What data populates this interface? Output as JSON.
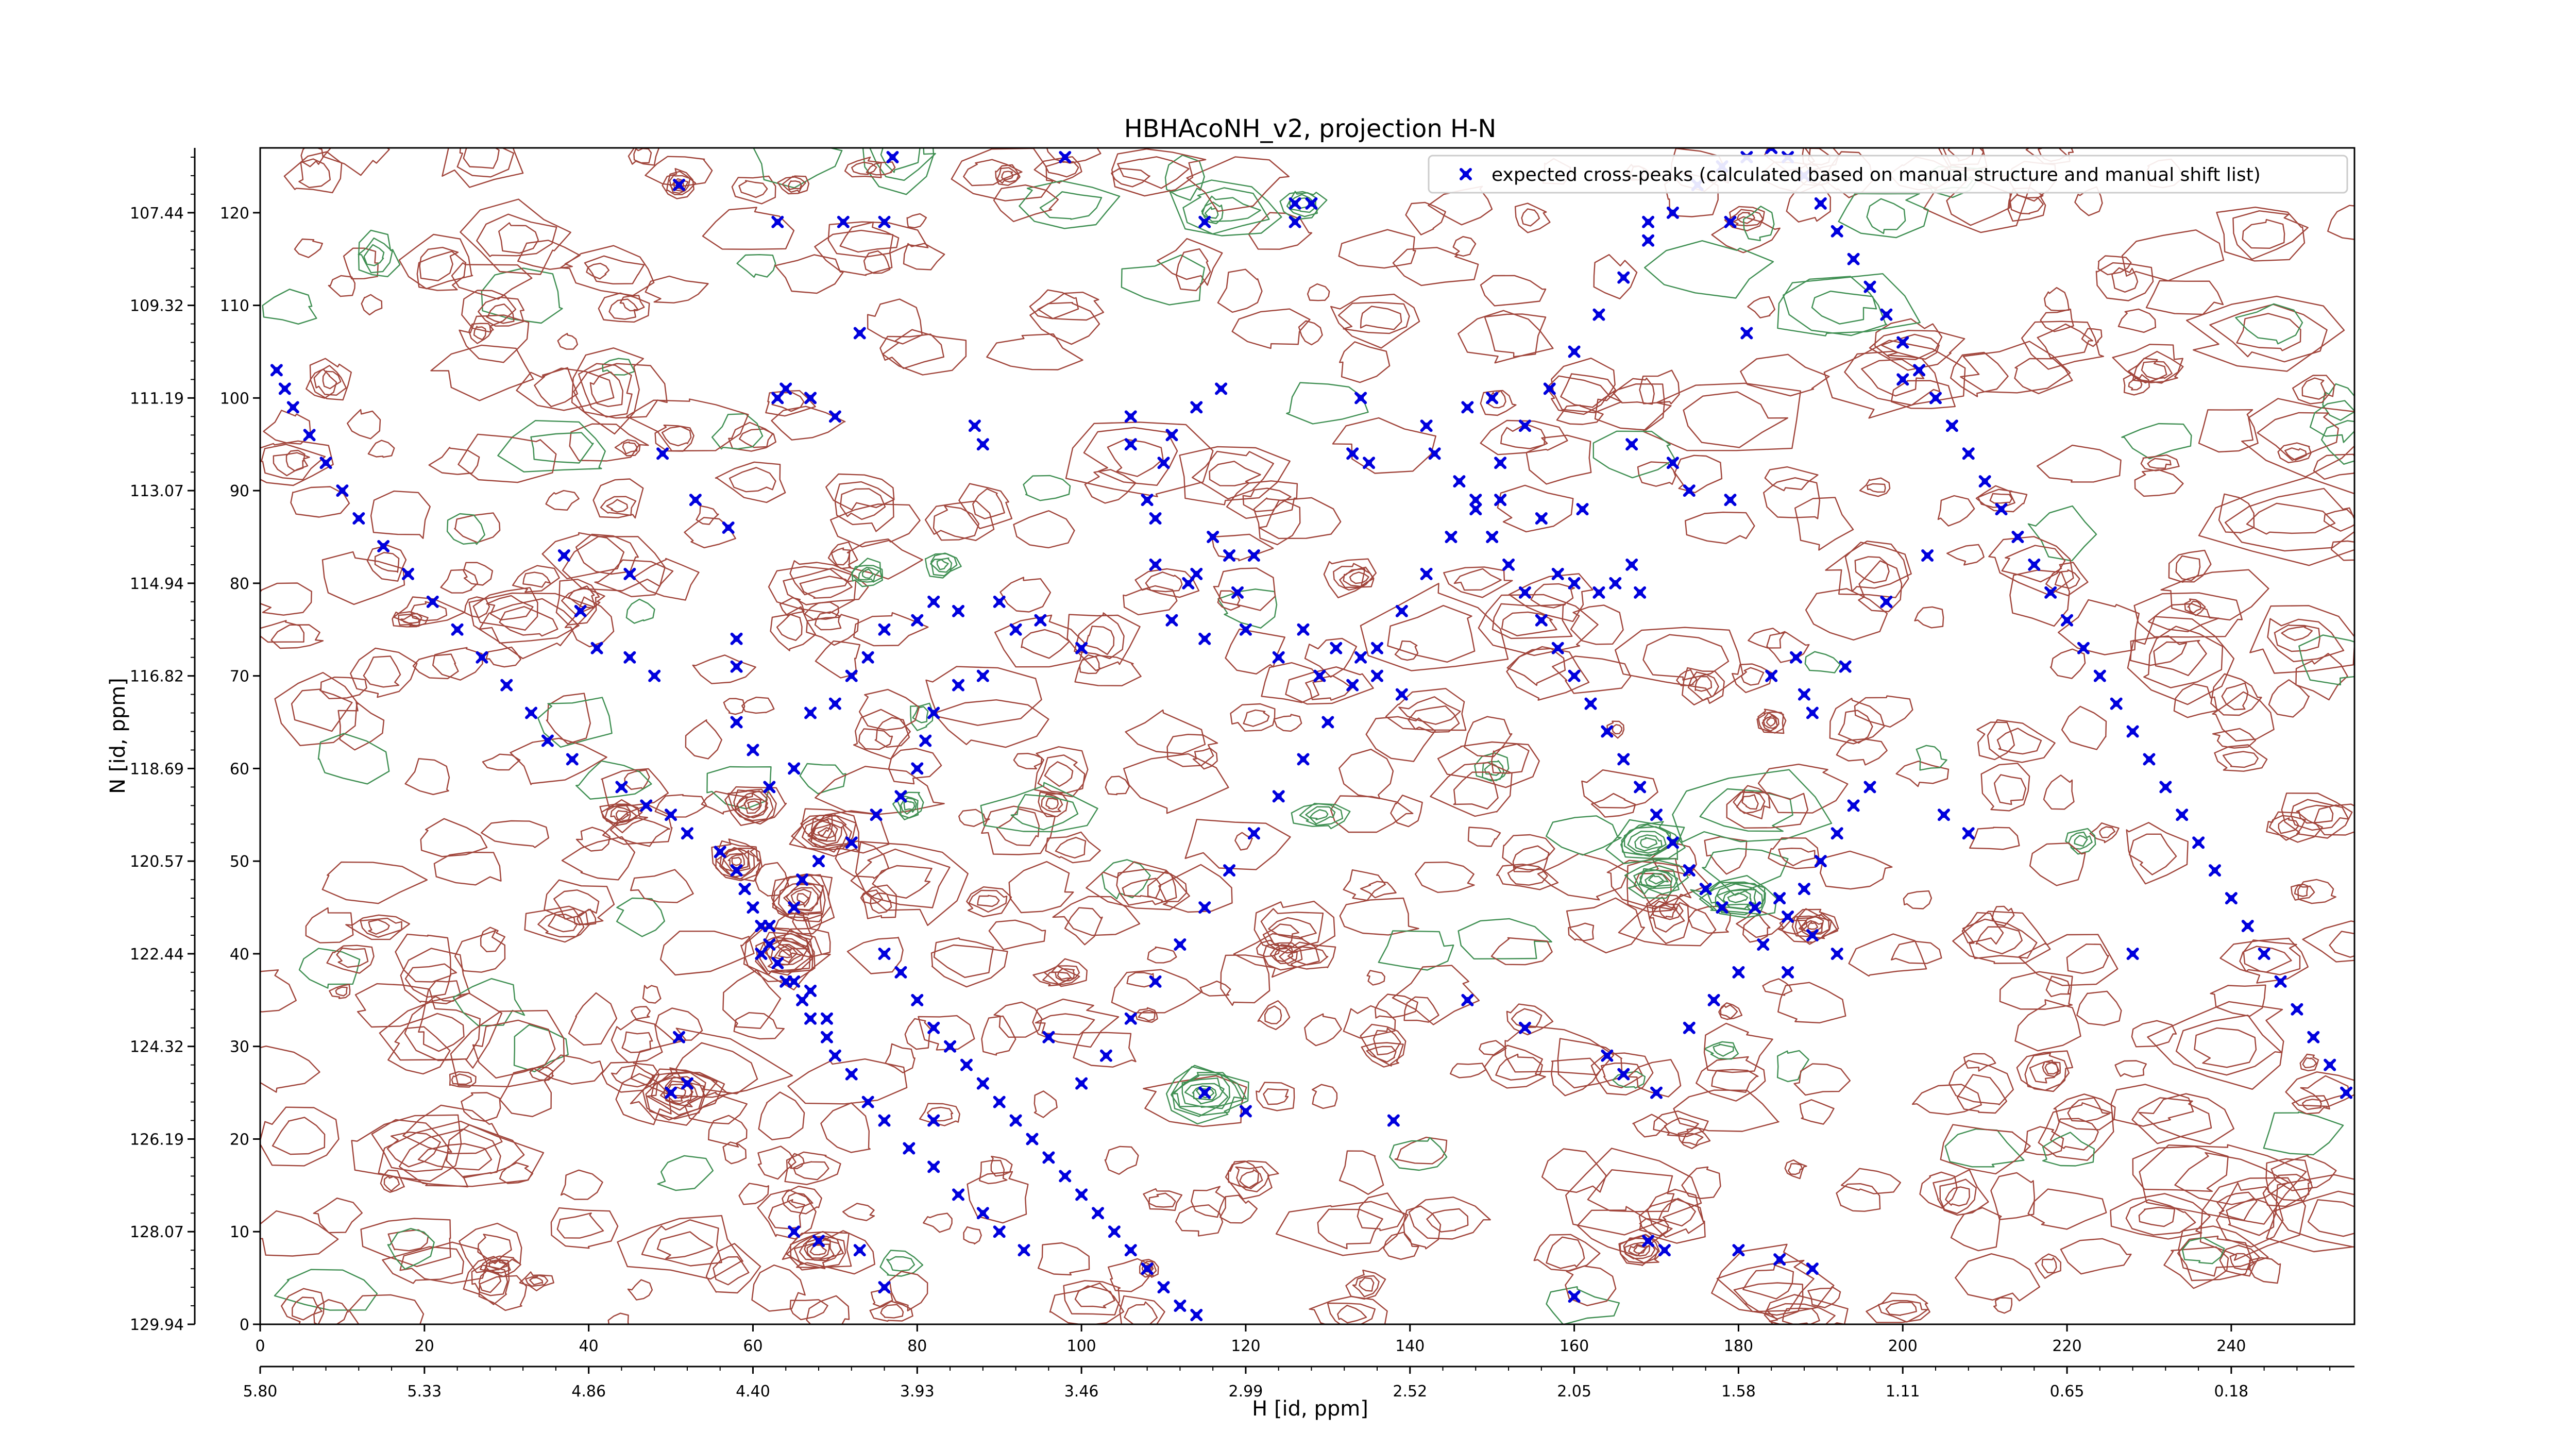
{
  "chart_data": {
    "type": "scatter",
    "title": "HBHAcoNH_v2, projection H-N",
    "xlabel": "H [id, ppm]",
    "ylabel": "N [id, ppm]",
    "x_index_range": [
      0,
      255
    ],
    "y_index_range": [
      0,
      127
    ],
    "x_index_ticks": [
      "0",
      "20",
      "40",
      "60",
      "80",
      "100",
      "120",
      "140",
      "160",
      "180",
      "200",
      "220",
      "240"
    ],
    "x_ppm_ticks": [
      "5.80",
      "5.33",
      "4.86",
      "4.40",
      "3.93",
      "3.46",
      "2.99",
      "2.52",
      "2.05",
      "1.58",
      "1.11",
      "0.65",
      "0.18"
    ],
    "y_index_ticks": [
      "0",
      "10",
      "20",
      "30",
      "40",
      "50",
      "60",
      "70",
      "80",
      "90",
      "100",
      "110",
      "120"
    ],
    "y_ppm_ticks": [
      "129.94",
      "128.07",
      "126.19",
      "124.32",
      "122.44",
      "120.57",
      "118.69",
      "116.82",
      "114.94",
      "113.07",
      "111.19",
      "109.32",
      "107.44"
    ],
    "legend": {
      "position": "top-right",
      "label": "expected cross-peaks (calculated based on manual structure and manual shift list)"
    },
    "colors": {
      "positive_contour": "#a0443a",
      "negative_contour": "#3f8f52",
      "marker": "#0000dd"
    },
    "series": [
      {
        "name": "expected cross-peaks (calculated based on manual structure and manual shift list)",
        "marker": "x",
        "points": [
          [
            51,
            123
          ],
          [
            77,
            126
          ],
          [
            98,
            126
          ],
          [
            63,
            119
          ],
          [
            71,
            119
          ],
          [
            76,
            119
          ],
          [
            115,
            119
          ],
          [
            126,
            119
          ],
          [
            169,
            119
          ],
          [
            179,
            119
          ],
          [
            126,
            121
          ],
          [
            128,
            121
          ],
          [
            181,
            107
          ],
          [
            134,
            100
          ],
          [
            63,
            100
          ],
          [
            70,
            98
          ],
          [
            87,
            97
          ],
          [
            88,
            95
          ],
          [
            106,
            98
          ],
          [
            114,
            99
          ],
          [
            111,
            96
          ],
          [
            110,
            93
          ],
          [
            106,
            95
          ],
          [
            117,
            101
          ],
          [
            142,
            97
          ],
          [
            143,
            94
          ],
          [
            133,
            94
          ],
          [
            135,
            93
          ],
          [
            147,
            99
          ],
          [
            150,
            100
          ],
          [
            49,
            94
          ],
          [
            53,
            89
          ],
          [
            57,
            86
          ],
          [
            67,
            100
          ],
          [
            64,
            101
          ],
          [
            73,
            107
          ],
          [
            200,
            102
          ],
          [
            167,
            95
          ],
          [
            174,
            90
          ],
          [
            179,
            89
          ],
          [
            172,
            93
          ],
          [
            151,
            89
          ],
          [
            161,
            88
          ],
          [
            156,
            87
          ],
          [
            160,
            80
          ],
          [
            158,
            81
          ],
          [
            165,
            80
          ],
          [
            168,
            79
          ],
          [
            163,
            79
          ],
          [
            167,
            82
          ],
          [
            108,
            89
          ],
          [
            109,
            87
          ],
          [
            116,
            85
          ],
          [
            118,
            83
          ],
          [
            121,
            83
          ],
          [
            114,
            81
          ],
          [
            119,
            79
          ],
          [
            127,
            75
          ],
          [
            131,
            73
          ],
          [
            134,
            72
          ],
          [
            136,
            70
          ],
          [
            139,
            68
          ],
          [
            129,
            70
          ],
          [
            124,
            72
          ],
          [
            120,
            75
          ],
          [
            115,
            74
          ],
          [
            111,
            76
          ],
          [
            113,
            80
          ],
          [
            109,
            82
          ],
          [
            37,
            83
          ],
          [
            45,
            81
          ],
          [
            39,
            77
          ],
          [
            41,
            73
          ],
          [
            45,
            72
          ],
          [
            48,
            70
          ],
          [
            58,
            74
          ],
          [
            58,
            71
          ],
          [
            58,
            65
          ],
          [
            60,
            62
          ],
          [
            62,
            58
          ],
          [
            65,
            60
          ],
          [
            67,
            66
          ],
          [
            70,
            67
          ],
          [
            72,
            70
          ],
          [
            74,
            72
          ],
          [
            76,
            75
          ],
          [
            80,
            76
          ],
          [
            82,
            78
          ],
          [
            85,
            77
          ],
          [
            90,
            78
          ],
          [
            92,
            75
          ],
          [
            95,
            76
          ],
          [
            100,
            73
          ],
          [
            88,
            70
          ],
          [
            85,
            69
          ],
          [
            82,
            66
          ],
          [
            81,
            63
          ],
          [
            80,
            60
          ],
          [
            78,
            57
          ],
          [
            75,
            55
          ],
          [
            72,
            52
          ],
          [
            68,
            50
          ],
          [
            66,
            48
          ],
          [
            65,
            45
          ],
          [
            62,
            43
          ],
          [
            61,
            40
          ],
          [
            64,
            37
          ],
          [
            67,
            36
          ],
          [
            69,
            33
          ],
          [
            70,
            29
          ],
          [
            72,
            27
          ],
          [
            74,
            24
          ],
          [
            76,
            22
          ],
          [
            79,
            19
          ],
          [
            82,
            17
          ],
          [
            85,
            14
          ],
          [
            88,
            12
          ],
          [
            90,
            10
          ],
          [
            93,
            8
          ],
          [
            56,
            51
          ],
          [
            58,
            49
          ],
          [
            59,
            47
          ],
          [
            60,
            45
          ],
          [
            61,
            43
          ],
          [
            62,
            41
          ],
          [
            63,
            39
          ],
          [
            65,
            37
          ],
          [
            66,
            35
          ],
          [
            67,
            33
          ],
          [
            69,
            31
          ],
          [
            50,
            55
          ],
          [
            52,
            53
          ],
          [
            47,
            56
          ],
          [
            44,
            58
          ],
          [
            38,
            61
          ],
          [
            35,
            63
          ],
          [
            33,
            66
          ],
          [
            30,
            69
          ],
          [
            27,
            72
          ],
          [
            24,
            75
          ],
          [
            21,
            78
          ],
          [
            18,
            81
          ],
          [
            15,
            84
          ],
          [
            12,
            87
          ],
          [
            10,
            90
          ],
          [
            8,
            93
          ],
          [
            6,
            96
          ],
          [
            4,
            99
          ],
          [
            3,
            101
          ],
          [
            2,
            103
          ],
          [
            76,
            40
          ],
          [
            78,
            38
          ],
          [
            80,
            35
          ],
          [
            82,
            32
          ],
          [
            84,
            30
          ],
          [
            86,
            28
          ],
          [
            88,
            26
          ],
          [
            90,
            24
          ],
          [
            92,
            22
          ],
          [
            94,
            20
          ],
          [
            96,
            18
          ],
          [
            98,
            16
          ],
          [
            100,
            14
          ],
          [
            102,
            12
          ],
          [
            104,
            10
          ],
          [
            106,
            8
          ],
          [
            108,
            6
          ],
          [
            110,
            4
          ],
          [
            112,
            2
          ],
          [
            114,
            1
          ],
          [
            82,
            22
          ],
          [
            96,
            31
          ],
          [
            100,
            26
          ],
          [
            103,
            29
          ],
          [
            106,
            33
          ],
          [
            109,
            37
          ],
          [
            112,
            41
          ],
          [
            115,
            45
          ],
          [
            118,
            49
          ],
          [
            121,
            53
          ],
          [
            124,
            57
          ],
          [
            127,
            61
          ],
          [
            130,
            65
          ],
          [
            133,
            69
          ],
          [
            136,
            73
          ],
          [
            139,
            77
          ],
          [
            142,
            81
          ],
          [
            145,
            85
          ],
          [
            148,
            89
          ],
          [
            151,
            93
          ],
          [
            154,
            97
          ],
          [
            157,
            101
          ],
          [
            160,
            105
          ],
          [
            163,
            109
          ],
          [
            166,
            113
          ],
          [
            169,
            117
          ],
          [
            172,
            120
          ],
          [
            175,
            123
          ],
          [
            178,
            125
          ],
          [
            181,
            126
          ],
          [
            184,
            127
          ],
          [
            186,
            126
          ],
          [
            188,
            124
          ],
          [
            190,
            121
          ],
          [
            192,
            118
          ],
          [
            194,
            115
          ],
          [
            196,
            112
          ],
          [
            198,
            109
          ],
          [
            200,
            106
          ],
          [
            202,
            103
          ],
          [
            204,
            100
          ],
          [
            206,
            97
          ],
          [
            208,
            94
          ],
          [
            210,
            91
          ],
          [
            212,
            88
          ],
          [
            214,
            85
          ],
          [
            216,
            82
          ],
          [
            218,
            79
          ],
          [
            220,
            76
          ],
          [
            222,
            73
          ],
          [
            224,
            70
          ],
          [
            226,
            67
          ],
          [
            228,
            64
          ],
          [
            230,
            61
          ],
          [
            232,
            58
          ],
          [
            234,
            55
          ],
          [
            236,
            52
          ],
          [
            238,
            49
          ],
          [
            240,
            46
          ],
          [
            242,
            43
          ],
          [
            244,
            40
          ],
          [
            246,
            37
          ],
          [
            248,
            34
          ],
          [
            250,
            31
          ],
          [
            252,
            28
          ],
          [
            254,
            25
          ],
          [
            115,
            25
          ],
          [
            138,
            22
          ],
          [
            120,
            23
          ],
          [
            169,
            9
          ],
          [
            171,
            8
          ],
          [
            180,
            8
          ],
          [
            185,
            7
          ],
          [
            189,
            6
          ],
          [
            160,
            3
          ],
          [
            76,
            4
          ],
          [
            73,
            8
          ],
          [
            68,
            9
          ],
          [
            65,
            10
          ],
          [
            51,
            31
          ],
          [
            50,
            25
          ],
          [
            52,
            26
          ],
          [
            147,
            35
          ],
          [
            154,
            32
          ],
          [
            164,
            29
          ],
          [
            166,
            27
          ],
          [
            170,
            25
          ],
          [
            174,
            32
          ],
          [
            177,
            35
          ],
          [
            180,
            38
          ],
          [
            183,
            41
          ],
          [
            186,
            44
          ],
          [
            188,
            47
          ],
          [
            190,
            50
          ],
          [
            192,
            53
          ],
          [
            194,
            56
          ],
          [
            196,
            58
          ],
          [
            182,
            45
          ],
          [
            185,
            46
          ],
          [
            178,
            45
          ],
          [
            176,
            47
          ],
          [
            174,
            49
          ],
          [
            172,
            52
          ],
          [
            170,
            55
          ],
          [
            168,
            58
          ],
          [
            166,
            61
          ],
          [
            164,
            64
          ],
          [
            162,
            67
          ],
          [
            160,
            70
          ],
          [
            158,
            73
          ],
          [
            156,
            76
          ],
          [
            154,
            79
          ],
          [
            152,
            82
          ],
          [
            150,
            85
          ],
          [
            148,
            88
          ],
          [
            146,
            91
          ],
          [
            228,
            40
          ],
          [
            205,
            55
          ],
          [
            208,
            53
          ],
          [
            189,
            42
          ],
          [
            192,
            40
          ],
          [
            186,
            38
          ],
          [
            188,
            68
          ],
          [
            189,
            66
          ],
          [
            184,
            70
          ],
          [
            187,
            72
          ],
          [
            193,
            71
          ],
          [
            198,
            78
          ],
          [
            203,
            83
          ]
        ]
      }
    ]
  }
}
